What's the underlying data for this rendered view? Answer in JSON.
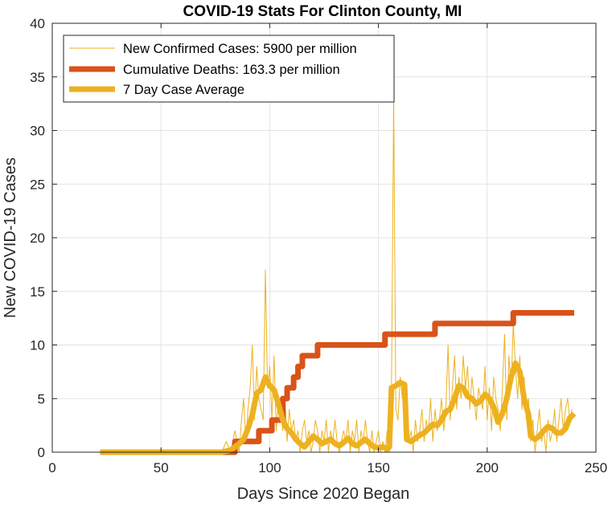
{
  "chart_data": {
    "type": "line",
    "title": "COVID-19 Stats For Clinton County, MI",
    "xlabel": "Days Since 2020 Began",
    "ylabel": "New COVID-19 Cases",
    "xlim": [
      0,
      250
    ],
    "ylim": [
      0,
      40
    ],
    "xticks": [
      "0",
      "50",
      "100",
      "150",
      "200",
      "250"
    ],
    "yticks": [
      "0",
      "5",
      "10",
      "15",
      "20",
      "25",
      "30",
      "35",
      "40"
    ],
    "grid": true,
    "legend_position": "top-left",
    "series": [
      {
        "name": "New Confirmed Cases: 5900 per million",
        "color": "#EDB120",
        "line": "thin",
        "points": [
          [
            22,
            0
          ],
          [
            78,
            0
          ],
          [
            80,
            1
          ],
          [
            82,
            0
          ],
          [
            84,
            2
          ],
          [
            86,
            0
          ],
          [
            87,
            3
          ],
          [
            88,
            5
          ],
          [
            89,
            1
          ],
          [
            90,
            4
          ],
          [
            91,
            6
          ],
          [
            92,
            10
          ],
          [
            93,
            3
          ],
          [
            94,
            8
          ],
          [
            95,
            5
          ],
          [
            96,
            4
          ],
          [
            97,
            3
          ],
          [
            98,
            17
          ],
          [
            99,
            6
          ],
          [
            100,
            8
          ],
          [
            101,
            3
          ],
          [
            102,
            9
          ],
          [
            103,
            2
          ],
          [
            104,
            5
          ],
          [
            105,
            4
          ],
          [
            106,
            2
          ],
          [
            107,
            5
          ],
          [
            108,
            1
          ],
          [
            109,
            4
          ],
          [
            110,
            2
          ],
          [
            111,
            3
          ],
          [
            112,
            1
          ],
          [
            113,
            2
          ],
          [
            114,
            0
          ],
          [
            115,
            2
          ],
          [
            116,
            3
          ],
          [
            117,
            1
          ],
          [
            118,
            2
          ],
          [
            119,
            0
          ],
          [
            120,
            1
          ],
          [
            121,
            3
          ],
          [
            122,
            2
          ],
          [
            123,
            0
          ],
          [
            124,
            2
          ],
          [
            125,
            1
          ],
          [
            126,
            3
          ],
          [
            127,
            0
          ],
          [
            128,
            2
          ],
          [
            129,
            1
          ],
          [
            130,
            3
          ],
          [
            131,
            1
          ],
          [
            132,
            0
          ],
          [
            133,
            1
          ],
          [
            134,
            2
          ],
          [
            135,
            1
          ],
          [
            136,
            3
          ],
          [
            137,
            0
          ],
          [
            138,
            2
          ],
          [
            139,
            1
          ],
          [
            140,
            3
          ],
          [
            141,
            0
          ],
          [
            142,
            2
          ],
          [
            143,
            1
          ],
          [
            144,
            3
          ],
          [
            145,
            1
          ],
          [
            146,
            0
          ],
          [
            147,
            2
          ],
          [
            148,
            0
          ],
          [
            149,
            1
          ],
          [
            150,
            2
          ],
          [
            151,
            0
          ],
          [
            152,
            1
          ],
          [
            153,
            0
          ],
          [
            154,
            2
          ],
          [
            155,
            0
          ],
          [
            156,
            6
          ],
          [
            157,
            33
          ],
          [
            158,
            4
          ],
          [
            159,
            3
          ],
          [
            160,
            7
          ],
          [
            161,
            5
          ],
          [
            162,
            6
          ],
          [
            163,
            3
          ],
          [
            164,
            1
          ],
          [
            165,
            2
          ],
          [
            166,
            0
          ],
          [
            167,
            3
          ],
          [
            168,
            1
          ],
          [
            169,
            2
          ],
          [
            170,
            4
          ],
          [
            171,
            1
          ],
          [
            172,
            3
          ],
          [
            173,
            2
          ],
          [
            174,
            5
          ],
          [
            175,
            1
          ],
          [
            176,
            4
          ],
          [
            177,
            2
          ],
          [
            178,
            3
          ],
          [
            179,
            5
          ],
          [
            180,
            2
          ],
          [
            181,
            4
          ],
          [
            182,
            10
          ],
          [
            183,
            3
          ],
          [
            184,
            6
          ],
          [
            185,
            9
          ],
          [
            186,
            4
          ],
          [
            187,
            7
          ],
          [
            188,
            5
          ],
          [
            189,
            9
          ],
          [
            190,
            6
          ],
          [
            191,
            8
          ],
          [
            192,
            4
          ],
          [
            193,
            7
          ],
          [
            194,
            5
          ],
          [
            195,
            3
          ],
          [
            196,
            6
          ],
          [
            197,
            5
          ],
          [
            198,
            4
          ],
          [
            199,
            8
          ],
          [
            200,
            3
          ],
          [
            201,
            6
          ],
          [
            202,
            2
          ],
          [
            203,
            7
          ],
          [
            204,
            5
          ],
          [
            205,
            4
          ],
          [
            206,
            2
          ],
          [
            207,
            6
          ],
          [
            208,
            11
          ],
          [
            209,
            3
          ],
          [
            210,
            9
          ],
          [
            211,
            6
          ],
          [
            212,
            12
          ],
          [
            213,
            8
          ],
          [
            214,
            5
          ],
          [
            215,
            9
          ],
          [
            216,
            4
          ],
          [
            217,
            7
          ],
          [
            218,
            3
          ],
          [
            219,
            5
          ],
          [
            220,
            1
          ],
          [
            221,
            3
          ],
          [
            222,
            0
          ],
          [
            223,
            2
          ],
          [
            224,
            4
          ],
          [
            225,
            1
          ],
          [
            226,
            2
          ],
          [
            227,
            0
          ],
          [
            228,
            3
          ],
          [
            229,
            1
          ],
          [
            230,
            2
          ],
          [
            231,
            4
          ],
          [
            232,
            1
          ],
          [
            233,
            3
          ],
          [
            234,
            5
          ],
          [
            235,
            2
          ],
          [
            236,
            4
          ],
          [
            237,
            5
          ],
          [
            238,
            3
          ],
          [
            239,
            4
          ]
        ]
      },
      {
        "name": "Cumulative Deaths: 163.3 per million",
        "color": "#D95319",
        "line": "thick",
        "points": [
          [
            22,
            0
          ],
          [
            83,
            0
          ],
          [
            84,
            0
          ],
          [
            84,
            1
          ],
          [
            95,
            1
          ],
          [
            95,
            2
          ],
          [
            101,
            2
          ],
          [
            101,
            3
          ],
          [
            106,
            3
          ],
          [
            106,
            5
          ],
          [
            108,
            5
          ],
          [
            108,
            6
          ],
          [
            111,
            6
          ],
          [
            111,
            7
          ],
          [
            113,
            7
          ],
          [
            113,
            8
          ],
          [
            115,
            8
          ],
          [
            115,
            9
          ],
          [
            122,
            9
          ],
          [
            122,
            10
          ],
          [
            153,
            10
          ],
          [
            153,
            11
          ],
          [
            176,
            11
          ],
          [
            176,
            12
          ],
          [
            212,
            12
          ],
          [
            212,
            13
          ],
          [
            240,
            13
          ]
        ]
      },
      {
        "name": "7 Day Case Average",
        "color": "#EDB120",
        "line": "thick",
        "points": [
          [
            22,
            0
          ],
          [
            78,
            0
          ],
          [
            82,
            0.2
          ],
          [
            86,
            0.8
          ],
          [
            88,
            1.2
          ],
          [
            90,
            2.2
          ],
          [
            92,
            3.5
          ],
          [
            94,
            5.5
          ],
          [
            96,
            5.8
          ],
          [
            98,
            7
          ],
          [
            100,
            6.2
          ],
          [
            102,
            5.8
          ],
          [
            104,
            4.5
          ],
          [
            106,
            3
          ],
          [
            108,
            2.2
          ],
          [
            110,
            1.8
          ],
          [
            112,
            1.2
          ],
          [
            114,
            0.8
          ],
          [
            116,
            0.5
          ],
          [
            118,
            1
          ],
          [
            120,
            1.5
          ],
          [
            122,
            1.2
          ],
          [
            124,
            0.8
          ],
          [
            126,
            1
          ],
          [
            128,
            1.2
          ],
          [
            130,
            0.8
          ],
          [
            132,
            0.6
          ],
          [
            134,
            0.9
          ],
          [
            136,
            1.3
          ],
          [
            138,
            0.8
          ],
          [
            140,
            0.6
          ],
          [
            142,
            0.9
          ],
          [
            144,
            1.2
          ],
          [
            146,
            0.8
          ],
          [
            148,
            0.5
          ],
          [
            150,
            0.4
          ],
          [
            152,
            0.5
          ],
          [
            154,
            0.3
          ],
          [
            155,
            0.5
          ],
          [
            156,
            6
          ],
          [
            158,
            6.2
          ],
          [
            160,
            6.5
          ],
          [
            162,
            6.3
          ],
          [
            163,
            1.2
          ],
          [
            165,
            1
          ],
          [
            167,
            1.3
          ],
          [
            169,
            1.6
          ],
          [
            171,
            1.8
          ],
          [
            173,
            2.2
          ],
          [
            175,
            2.6
          ],
          [
            177,
            2.5
          ],
          [
            179,
            3
          ],
          [
            181,
            3.8
          ],
          [
            183,
            4
          ],
          [
            185,
            5
          ],
          [
            187,
            6.2
          ],
          [
            189,
            6
          ],
          [
            191,
            5.2
          ],
          [
            193,
            5
          ],
          [
            195,
            4.5
          ],
          [
            197,
            4.8
          ],
          [
            199,
            5.4
          ],
          [
            201,
            5
          ],
          [
            203,
            4.2
          ],
          [
            205,
            2.8
          ],
          [
            207,
            3.6
          ],
          [
            209,
            5
          ],
          [
            211,
            7
          ],
          [
            213,
            8.3
          ],
          [
            215,
            7.5
          ],
          [
            217,
            5
          ],
          [
            219,
            3.5
          ],
          [
            220,
            1.5
          ],
          [
            222,
            1.2
          ],
          [
            224,
            1.5
          ],
          [
            226,
            2
          ],
          [
            228,
            2.4
          ],
          [
            230,
            2.2
          ],
          [
            232,
            1.8
          ],
          [
            234,
            1.8
          ],
          [
            236,
            2.2
          ],
          [
            238,
            3.2
          ],
          [
            240,
            3.6
          ]
        ]
      }
    ]
  }
}
